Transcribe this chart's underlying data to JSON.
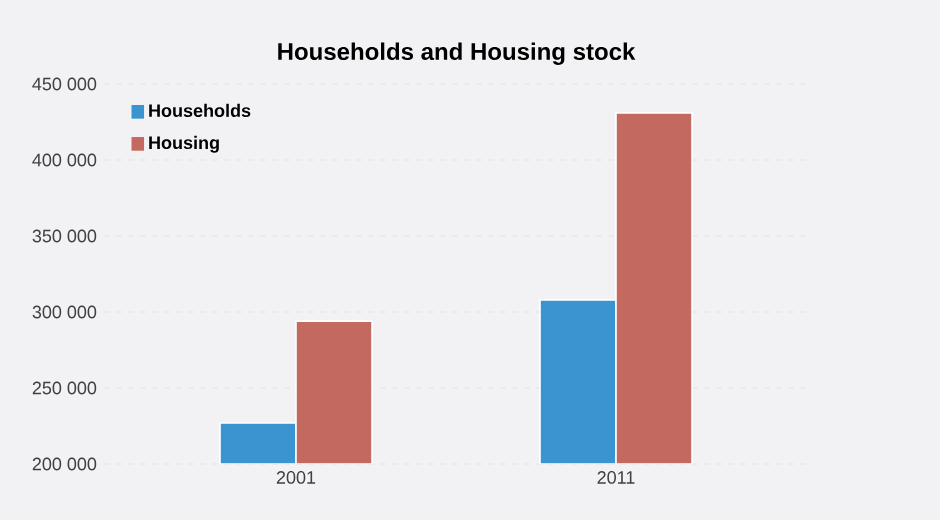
{
  "chart_data": {
    "type": "bar",
    "title": "Households and Housing stock",
    "categories": [
      "2001",
      "2011"
    ],
    "series": [
      {
        "name": "Households",
        "color": "#3a94d0",
        "values": [
          227000,
          308000
        ]
      },
      {
        "name": "Housing",
        "color": "#c4695f",
        "values": [
          294000,
          431000
        ]
      }
    ],
    "ylim": [
      200000,
      450000
    ],
    "yticks": [
      {
        "value": 200000,
        "label": "200 000"
      },
      {
        "value": 250000,
        "label": "250 000"
      },
      {
        "value": 300000,
        "label": "300 000"
      },
      {
        "value": 350000,
        "label": "350 000"
      },
      {
        "value": 400000,
        "label": "400 000"
      },
      {
        "value": 450000,
        "label": "450 000"
      }
    ],
    "grid": "y",
    "legend": "top left"
  }
}
